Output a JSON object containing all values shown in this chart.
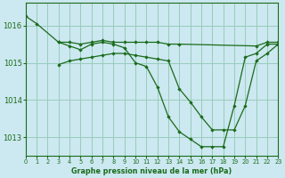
{
  "title": "Graphe pression niveau de la mer (hPa)",
  "bg_color": "#cce8f0",
  "grid_color": "#99ccbb",
  "line_color": "#1a6b1a",
  "xlim": [
    0,
    23
  ],
  "ylim": [
    1012.5,
    1016.6
  ],
  "yticks": [
    1013,
    1014,
    1015,
    1016
  ],
  "xticks": [
    0,
    1,
    2,
    3,
    4,
    5,
    6,
    7,
    8,
    9,
    10,
    11,
    12,
    13,
    14,
    15,
    16,
    17,
    18,
    19,
    20,
    21,
    22,
    23
  ],
  "series": [
    {
      "x": [
        0,
        1,
        3,
        4,
        5,
        6,
        7,
        8,
        9,
        10,
        11,
        12,
        13,
        14,
        15,
        16,
        17,
        18,
        19,
        20,
        21,
        22,
        23
      ],
      "y": [
        1016.25,
        1016.05,
        1015.55,
        1015.45,
        1015.35,
        1015.5,
        1015.55,
        1015.5,
        1015.4,
        1015.0,
        1014.9,
        1014.35,
        1013.55,
        1013.15,
        1012.95,
        1012.75,
        1012.75,
        1012.75,
        1013.85,
        1015.15,
        1015.25,
        1015.5,
        1015.5
      ]
    },
    {
      "x": [
        3,
        4,
        5,
        6,
        7,
        8,
        9,
        10,
        11,
        12,
        13,
        14,
        21,
        22,
        23
      ],
      "y": [
        1015.55,
        1015.55,
        1015.5,
        1015.55,
        1015.6,
        1015.55,
        1015.55,
        1015.55,
        1015.55,
        1015.55,
        1015.5,
        1015.5,
        1015.45,
        1015.55,
        1015.55
      ]
    },
    {
      "x": [
        3,
        4,
        5,
        6,
        7,
        8,
        9,
        10,
        11,
        12,
        13,
        14,
        15,
        16,
        17,
        18,
        19,
        20,
        21,
        22,
        23
      ],
      "y": [
        1014.95,
        1015.05,
        1015.1,
        1015.15,
        1015.2,
        1015.25,
        1015.25,
        1015.2,
        1015.15,
        1015.1,
        1015.05,
        1014.3,
        1013.95,
        1013.55,
        1013.2,
        1013.2,
        1013.2,
        1013.85,
        1015.05,
        1015.25,
        1015.5
      ]
    }
  ]
}
